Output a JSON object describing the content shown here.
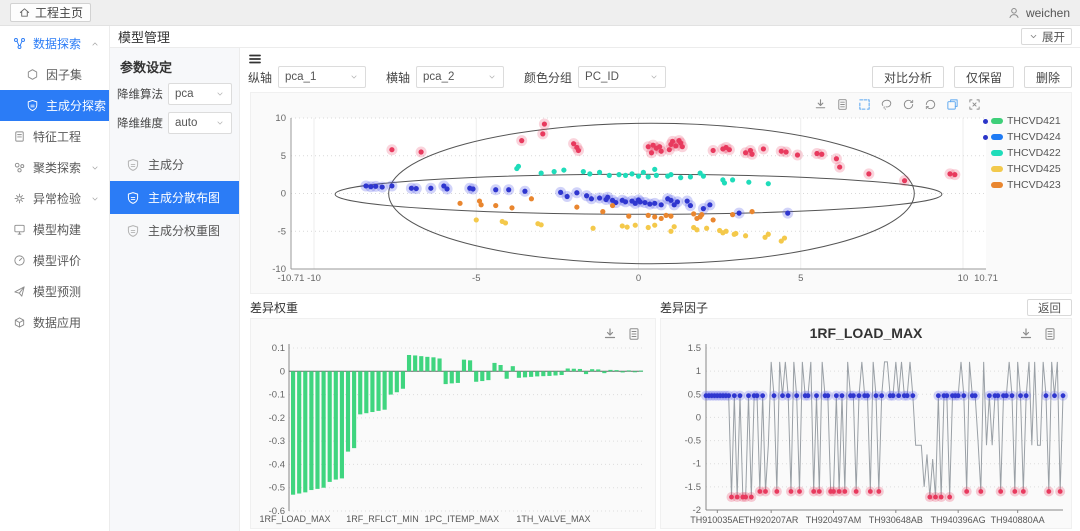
{
  "colors": {
    "accent": "#2b7cf6",
    "bar_green": "#3fd57f",
    "line_gray": "#9aa0a6",
    "point_red": "#e83a5e",
    "point_blue": "#2f36cf",
    "point_cyan": "#1fdcba",
    "point_yellow": "#f4c94b",
    "point_orange": "#e9862f"
  },
  "top_bar": {
    "home_label": "工程主页",
    "user_name": "weichen"
  },
  "page_header": {
    "title": "模型管理",
    "expand_label": "展开"
  },
  "sidebar": {
    "items": [
      {
        "label": "数据探索",
        "icon": "share-icon",
        "type": "parent",
        "chevron": "up",
        "active": true
      },
      {
        "label": "因子集",
        "icon": "hexagon-icon",
        "type": "child"
      },
      {
        "label": "主成分探索",
        "icon": "shield-icon",
        "type": "child",
        "selected": true
      },
      {
        "label": "特征工程",
        "icon": "file-icon",
        "type": "parent"
      },
      {
        "label": "聚类探索",
        "icon": "cluster-icon",
        "type": "parent",
        "chevron": "down"
      },
      {
        "label": "异常检验",
        "icon": "gear-icon",
        "type": "parent",
        "chevron": "down"
      },
      {
        "label": "模型构建",
        "icon": "monitor-icon",
        "type": "parent"
      },
      {
        "label": "模型评价",
        "icon": "gauge-icon",
        "type": "parent"
      },
      {
        "label": "模型预测",
        "icon": "send-icon",
        "type": "parent"
      },
      {
        "label": "数据应用",
        "icon": "box-icon",
        "type": "parent"
      }
    ]
  },
  "params_panel": {
    "title": "参数设定",
    "fields": [
      {
        "label": "降维算法",
        "value": "pca"
      },
      {
        "label": "降维维度",
        "value": "auto"
      }
    ],
    "menu": [
      {
        "label": "主成分",
        "selected": false
      },
      {
        "label": "主成分散布图",
        "selected": true
      },
      {
        "label": "主成分权重图",
        "selected": false
      }
    ]
  },
  "toolbar": {
    "fields": [
      {
        "label": "纵轴",
        "value": "pca_1"
      },
      {
        "label": "横轴",
        "value": "pca_2"
      },
      {
        "label": "颜色分组",
        "value": "PC_ID"
      }
    ],
    "buttons": [
      "对比分析",
      "仅保留",
      "删除"
    ]
  },
  "scatter_toolbox": [
    {
      "name": "download-icon",
      "color": "#8c8c8c"
    },
    {
      "name": "data-view-icon",
      "color": "#8c8c8c"
    },
    {
      "name": "box-select-icon",
      "color": "#5aa6f0"
    },
    {
      "name": "lasso-icon",
      "color": "#8c8c8c"
    },
    {
      "name": "restore-icon",
      "color": "#8c8c8c"
    },
    {
      "name": "refresh-icon",
      "color": "#8c8c8c"
    },
    {
      "name": "layers-icon",
      "color": "#5aa6f0"
    },
    {
      "name": "clear-select-icon",
      "color": "#8c8c8c"
    }
  ],
  "panels": {
    "weights_title": "差异权重",
    "factors_title": "差异因子",
    "back_label": "返回"
  },
  "chart_data": [
    {
      "type": "scatter",
      "xlim": [
        -10.71,
        10.71
      ],
      "ylim": [
        -10,
        10
      ],
      "xticks": [
        "-10.71",
        "-10",
        "-5",
        "0",
        "5",
        "10",
        "10.71"
      ],
      "xtick_values": [
        -10.71,
        -10,
        -5,
        0,
        5,
        10,
        10.71
      ],
      "yticks": [
        10,
        5,
        0,
        -5,
        -10
      ],
      "legend_position": "right",
      "legend": [
        {
          "label": "THCVD421",
          "swatch": "#3ecf79",
          "selected": true
        },
        {
          "label": "THCVD424",
          "swatch": "#1f7bf4",
          "selected": true
        },
        {
          "label": "THCVD422",
          "swatch": "#1fdcba",
          "selected": false
        },
        {
          "label": "THCVD425",
          "swatch": "#f2c94c",
          "selected": false
        },
        {
          "label": "THCVD423",
          "swatch": "#e9862f",
          "selected": false
        }
      ],
      "ellipses": [
        {
          "cx": 0.4,
          "cy": 0,
          "rx": 8.1,
          "ry": 9.3
        },
        {
          "cx": 0,
          "cy": -0.1,
          "rx": 9.35,
          "ry": 2.65
        }
      ],
      "series": [
        {
          "name": "THCVD421",
          "color": "#e83a5e",
          "glow": "rgba(232,58,94,0.22)",
          "points": [
            [
              -7.6,
              5.8
            ],
            [
              -6.7,
              5.5
            ],
            [
              -3.6,
              7.0
            ],
            [
              -2.9,
              9.2
            ],
            [
              -2.95,
              7.9
            ],
            [
              -2.0,
              6.6
            ],
            [
              -1.9,
              6.1
            ],
            [
              -1.85,
              5.7
            ],
            [
              0.3,
              6.2
            ],
            [
              0.45,
              6.4
            ],
            [
              0.55,
              6.0
            ],
            [
              0.65,
              6.2
            ],
            [
              0.7,
              5.6
            ],
            [
              0.4,
              5.4
            ],
            [
              0.95,
              5.8
            ],
            [
              1.0,
              6.5
            ],
            [
              1.05,
              6.9
            ],
            [
              1.15,
              6.3
            ],
            [
              1.25,
              7.0
            ],
            [
              1.3,
              6.7
            ],
            [
              1.35,
              6.2
            ],
            [
              2.3,
              5.7
            ],
            [
              2.6,
              5.9
            ],
            [
              2.7,
              6.1
            ],
            [
              2.8,
              5.8
            ],
            [
              3.3,
              5.4
            ],
            [
              3.45,
              5.7
            ],
            [
              3.5,
              5.2
            ],
            [
              3.85,
              5.9
            ],
            [
              4.4,
              5.6
            ],
            [
              4.55,
              5.5
            ],
            [
              4.9,
              5.1
            ],
            [
              5.5,
              5.3
            ],
            [
              5.65,
              5.2
            ],
            [
              6.1,
              4.6
            ],
            [
              6.2,
              3.5
            ],
            [
              7.1,
              2.6
            ],
            [
              8.2,
              1.7
            ],
            [
              9.6,
              2.6
            ],
            [
              9.75,
              2.5
            ]
          ]
        },
        {
          "name": "THCVD424",
          "color": "#2f36cf",
          "glow": "rgba(90,97,235,0.28)",
          "points": [
            [
              -8.4,
              1.0
            ],
            [
              -8.25,
              0.9
            ],
            [
              -8.1,
              0.95
            ],
            [
              -7.9,
              0.85
            ],
            [
              -7.6,
              1.0
            ],
            [
              -7.0,
              0.7
            ],
            [
              -6.85,
              0.65
            ],
            [
              -6.4,
              0.7
            ],
            [
              -6.0,
              1.0
            ],
            [
              -5.9,
              0.6
            ],
            [
              -5.2,
              0.7
            ],
            [
              -5.1,
              0.6
            ],
            [
              -4.4,
              0.5
            ],
            [
              -4.0,
              0.5
            ],
            [
              -3.5,
              0.3
            ],
            [
              -2.4,
              0.15
            ],
            [
              -2.2,
              -0.4
            ],
            [
              -1.9,
              0.1
            ],
            [
              -1.6,
              -0.3
            ],
            [
              -1.45,
              -0.7
            ],
            [
              -1.2,
              -0.6
            ],
            [
              -1.0,
              -0.8
            ],
            [
              -0.95,
              -0.5
            ],
            [
              -0.8,
              -0.9
            ],
            [
              -0.7,
              -1.2
            ],
            [
              -0.5,
              -0.9
            ],
            [
              -0.4,
              -1.1
            ],
            [
              -0.2,
              -1.0
            ],
            [
              -0.1,
              -1.3
            ],
            [
              0.0,
              -0.85
            ],
            [
              0.05,
              -1.1
            ],
            [
              0.2,
              -1.2
            ],
            [
              0.35,
              -1.4
            ],
            [
              0.5,
              -1.3
            ],
            [
              0.7,
              -1.5
            ],
            [
              0.9,
              -0.7
            ],
            [
              1.0,
              -0.9
            ],
            [
              1.1,
              -1.5
            ],
            [
              1.2,
              -1.1
            ],
            [
              1.5,
              -1.0
            ],
            [
              1.6,
              -1.6
            ],
            [
              2.0,
              -2.0
            ],
            [
              2.2,
              -1.5
            ],
            [
              3.1,
              -2.6
            ],
            [
              4.6,
              -2.6
            ]
          ]
        },
        {
          "name": "THCVD422",
          "color": "#1fdcba",
          "glow": null,
          "points": [
            [
              -3.7,
              3.6
            ],
            [
              -3.75,
              3.3
            ],
            [
              -3.0,
              2.7
            ],
            [
              -2.6,
              2.9
            ],
            [
              -2.3,
              3.1
            ],
            [
              -1.7,
              2.9
            ],
            [
              -1.5,
              2.6
            ],
            [
              -1.2,
              2.8
            ],
            [
              -0.9,
              2.4
            ],
            [
              -0.6,
              2.5
            ],
            [
              -0.4,
              2.4
            ],
            [
              -0.2,
              2.6
            ],
            [
              0.0,
              2.3
            ],
            [
              0.15,
              2.8
            ],
            [
              0.3,
              2.2
            ],
            [
              0.5,
              3.2
            ],
            [
              0.55,
              2.4
            ],
            [
              0.9,
              2.3
            ],
            [
              1.0,
              2.5
            ],
            [
              1.3,
              2.1
            ],
            [
              1.6,
              2.2
            ],
            [
              1.9,
              2.7
            ],
            [
              2.0,
              2.3
            ],
            [
              2.6,
              1.8
            ],
            [
              2.65,
              1.4
            ],
            [
              2.9,
              1.8
            ],
            [
              3.4,
              1.5
            ],
            [
              4.0,
              1.3
            ]
          ]
        },
        {
          "name": "THCVD425",
          "color": "#f4c94b",
          "glow": null,
          "points": [
            [
              -5.0,
              -3.5
            ],
            [
              -4.2,
              -3.7
            ],
            [
              -4.1,
              -3.9
            ],
            [
              -3.1,
              -4.0
            ],
            [
              -3.0,
              -4.15
            ],
            [
              -1.4,
              -4.6
            ],
            [
              -0.5,
              -4.3
            ],
            [
              -0.35,
              -4.45
            ],
            [
              -0.1,
              -4.2
            ],
            [
              0.3,
              -4.5
            ],
            [
              0.5,
              -4.2
            ],
            [
              1.0,
              -5.0
            ],
            [
              1.1,
              -4.4
            ],
            [
              1.7,
              -4.5
            ],
            [
              1.8,
              -4.8
            ],
            [
              2.1,
              -4.6
            ],
            [
              2.5,
              -4.9
            ],
            [
              2.6,
              -5.2
            ],
            [
              2.7,
              -5.0
            ],
            [
              2.95,
              -5.4
            ],
            [
              3.0,
              -5.3
            ],
            [
              3.3,
              -5.6
            ],
            [
              3.9,
              -5.8
            ],
            [
              4.0,
              -5.4
            ],
            [
              4.4,
              -6.3
            ],
            [
              4.5,
              -5.9
            ]
          ]
        },
        {
          "name": "THCVD423",
          "color": "#e9862f",
          "glow": null,
          "points": [
            [
              -5.5,
              -1.3
            ],
            [
              -4.9,
              -1.0
            ],
            [
              -4.85,
              -1.5
            ],
            [
              -4.4,
              -1.6
            ],
            [
              -3.9,
              -1.9
            ],
            [
              -3.3,
              -0.7
            ],
            [
              -1.9,
              -1.8
            ],
            [
              -1.1,
              -2.4
            ],
            [
              -0.8,
              -1.6
            ],
            [
              -0.3,
              -3.0
            ],
            [
              0.3,
              -2.9
            ],
            [
              0.5,
              -3.1
            ],
            [
              0.7,
              -3.3
            ],
            [
              0.85,
              -2.9
            ],
            [
              1.0,
              -3.0
            ],
            [
              1.7,
              -2.7
            ],
            [
              1.8,
              -3.3
            ],
            [
              1.9,
              -3.1
            ],
            [
              1.95,
              -2.8
            ],
            [
              2.3,
              -3.5
            ],
            [
              2.9,
              -2.8
            ],
            [
              3.5,
              -2.4
            ]
          ]
        }
      ]
    },
    {
      "type": "bar",
      "title": "差异权重",
      "ylim": [
        -0.6,
        0.1
      ],
      "yticks": [
        0.1,
        0,
        -0.1,
        -0.2,
        -0.3,
        -0.4,
        -0.5,
        -0.6
      ],
      "xtick_labels": [
        "1RF_LOAD_MAX",
        "1RF_RFLCT_MIN",
        "1PC_ITEMP_MAX",
        "1TH_VALVE_MAX"
      ],
      "xtick_positions": [
        0,
        15,
        28,
        43
      ],
      "color": "#3fd57f",
      "values": [
        -0.53,
        -0.525,
        -0.52,
        -0.51,
        -0.505,
        -0.5,
        -0.475,
        -0.465,
        -0.46,
        -0.345,
        -0.33,
        -0.185,
        -0.18,
        -0.175,
        -0.17,
        -0.165,
        -0.1,
        -0.09,
        -0.075,
        0.07,
        0.068,
        0.065,
        0.062,
        0.06,
        0.055,
        -0.055,
        -0.052,
        -0.05,
        0.05,
        0.047,
        -0.045,
        -0.042,
        -0.038,
        0.036,
        0.027,
        -0.032,
        0.022,
        -0.028,
        -0.026,
        -0.024,
        -0.022,
        -0.021,
        -0.02,
        -0.018,
        -0.016,
        0.012,
        0.011,
        0.01,
        -0.012,
        0.009,
        0.008,
        -0.008,
        0.006,
        0.005,
        -0.005,
        0.004,
        -0.004,
        0.003
      ]
    },
    {
      "type": "line",
      "title": "1RF_LOAD_MAX",
      "ylim": [
        -2,
        1.5
      ],
      "yticks": [
        1.5,
        1,
        0.5,
        0,
        -0.5,
        -1,
        -1.5,
        -2
      ],
      "xtick_labels": [
        "TH910035AE",
        "TH920207AR",
        "TH920497AM",
        "TH930648AB",
        "TH940396AG",
        "TH940880AA"
      ],
      "xtick_positions": [
        4,
        23,
        45,
        67,
        89,
        110
      ],
      "line_color": "#9aa0a6",
      "blue_marker_value": 0.47,
      "red_marker_threshold": -1.6,
      "values": [
        0.47,
        0.47,
        0.47,
        0.47,
        0.47,
        0.47,
        0.47,
        0.47,
        0.47,
        -1.72,
        0.47,
        -1.72,
        0.47,
        -1.72,
        -1.72,
        0.47,
        -1.72,
        0.47,
        0.47,
        -1.6,
        0.47,
        -1.6,
        -0.6,
        1.2,
        0.47,
        -1.6,
        1.2,
        0.47,
        1.2,
        0.47,
        -1.6,
        1.2,
        0.47,
        -1.6,
        1.2,
        0.47,
        0.47,
        1.2,
        -1.6,
        0.47,
        -1.6,
        1.2,
        0.47,
        0.47,
        -1.6,
        -1.6,
        0.47,
        -1.6,
        0.47,
        -1.6,
        1.2,
        0.47,
        0.47,
        -1.6,
        0.47,
        1.2,
        0.47,
        0.47,
        -1.6,
        1.2,
        0.47,
        -1.6,
        0.47,
        1.2,
        1.2,
        0.47,
        0.47,
        1.2,
        0.47,
        1.2,
        0.47,
        0.47,
        1.2,
        0.47,
        -0.6,
        -0.6,
        -0.6,
        -1.5,
        -0.8,
        -1.72,
        -0.9,
        -1.72,
        0.47,
        -1.72,
        0.47,
        0.47,
        -1.72,
        0.47,
        0.47,
        0.47,
        1.2,
        0.47,
        -1.6,
        1.2,
        0.47,
        0.47,
        -0.5,
        -1.6,
        1.2,
        -0.6,
        0.47,
        -0.6,
        0.47,
        0.47,
        -1.6,
        0.47,
        0.47,
        1.2,
        0.47,
        -1.6,
        1.2,
        0.47,
        -1.6,
        0.47,
        1.2,
        -0.6,
        1.2,
        -0.6,
        -0.6,
        1.2,
        0.47,
        -1.6,
        1.2,
        0.47,
        1.2,
        -1.6,
        0.47
      ]
    }
  ]
}
